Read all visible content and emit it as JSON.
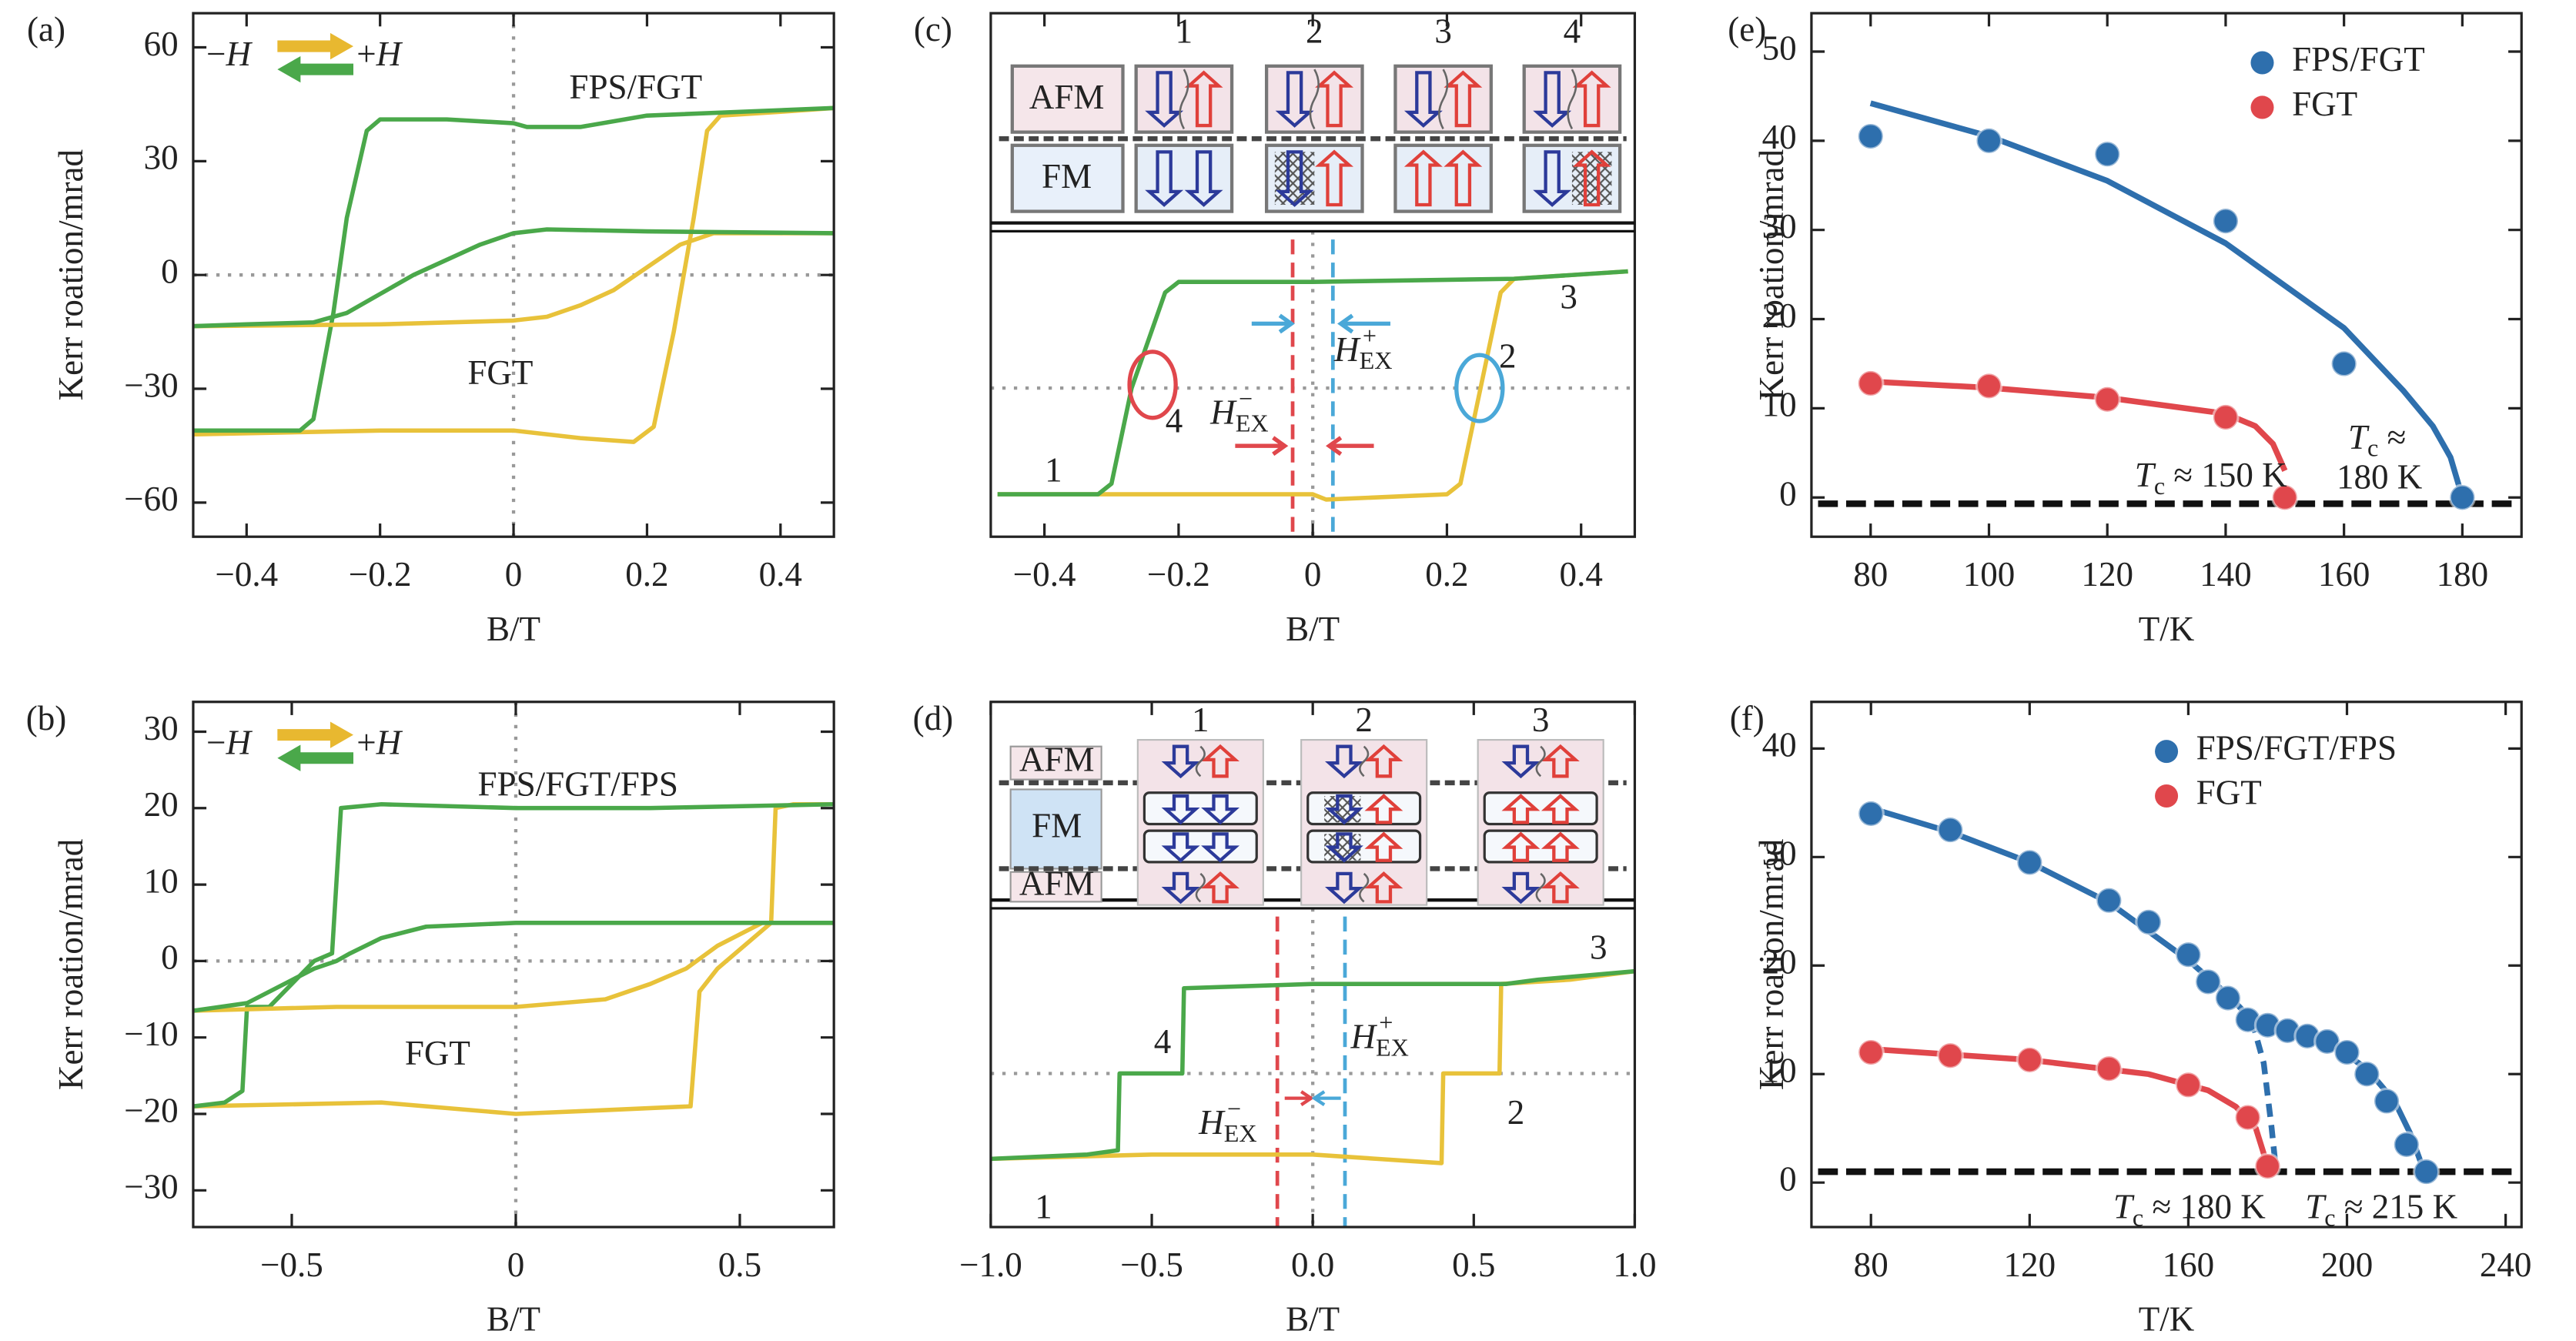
{
  "chart_data": [
    {
      "type": "line",
      "panel": "(a)",
      "xlabel": "B/T",
      "ylabel": "Kerr roation/mrad",
      "xlim": [
        -0.48,
        0.48
      ],
      "ylim": [
        -69,
        69
      ],
      "xticks": [
        {
          "value": -0.4,
          "label": "−0.4"
        },
        {
          "value": -0.2,
          "label": "−0.2"
        },
        0,
        0.2,
        0.4
      ],
      "yticks": [
        {
          "value": -60,
          "label": "−60"
        },
        {
          "value": -30,
          "label": "−30"
        },
        0,
        30,
        60
      ],
      "zero_lines": true,
      "series": [
        {
          "color": "#e8c23a",
          "x": [
            -0.48,
            -0.2,
            0,
            0.1,
            0.18,
            0.21,
            0.24,
            0.27,
            0.29,
            0.31,
            0.4,
            0.48
          ],
          "values": [
            -42,
            -41,
            -41,
            -43,
            -44,
            -40,
            -15,
            15,
            38,
            42,
            43,
            44
          ]
        },
        {
          "color": "#4aa84a",
          "x": [
            0.48,
            0.2,
            0.1,
            0.02,
            0,
            -0.1,
            -0.2,
            -0.22,
            -0.25,
            -0.27,
            -0.3,
            -0.32,
            -0.4,
            -0.48
          ],
          "values": [
            44,
            42,
            39,
            39,
            40,
            41,
            41,
            38,
            15,
            -10,
            -38,
            -41,
            -41,
            -41
          ]
        },
        {
          "color": "#e8c23a",
          "x": [
            -0.48,
            -0.2,
            0,
            0.05,
            0.1,
            0.15,
            0.2,
            0.25,
            0.3,
            0.4,
            0.48
          ],
          "values": [
            -13.5,
            -13,
            -12,
            -11,
            -8,
            -4,
            2,
            8,
            11,
            11,
            11
          ]
        },
        {
          "color": "#4aa84a",
          "x": [
            0.48,
            0.2,
            0.05,
            0,
            -0.05,
            -0.1,
            -0.15,
            -0.2,
            -0.25,
            -0.3,
            -0.4,
            -0.48
          ],
          "values": [
            11,
            11.5,
            12,
            11,
            8,
            4,
            0,
            -5,
            -10,
            -12.5,
            -13,
            -13.5
          ]
        }
      ],
      "annotations": [
        {
          "parts": [
            {
              "text": "−"
            },
            {
              "text": "H",
              "style": "italic"
            }
          ]
        },
        {
          "parts": [
            {
              "text": "+"
            },
            {
              "text": "H",
              "style": "italic"
            }
          ]
        },
        {
          "parts": [
            {
              "text": "FPS/FGT"
            }
          ]
        },
        {
          "parts": [
            {
              "text": "FGT"
            }
          ]
        }
      ]
    },
    {
      "type": "line",
      "panel": "(b)",
      "xlabel": "B/T",
      "ylabel": "Kerr roation/mrad",
      "xlim": [
        -0.72,
        0.71
      ],
      "ylim": [
        -34.8,
        33.9
      ],
      "xticks": [
        {
          "value": -0.5,
          "label": "−0.5"
        },
        0,
        0.5
      ],
      "yticks": [
        {
          "value": -30,
          "label": "−30"
        },
        {
          "value": -20,
          "label": "−20"
        },
        {
          "value": -10,
          "label": "−10"
        },
        0,
        10,
        20,
        30
      ],
      "zero_lines": true,
      "series": [
        {
          "color": "#e8c23a",
          "x": [
            -0.72,
            -0.3,
            0,
            0.2,
            0.39,
            0.41,
            0.45,
            0.55,
            0.57,
            0.58,
            0.62,
            0.71
          ],
          "values": [
            -19,
            -18.5,
            -20,
            -19.5,
            -19,
            -4,
            -1,
            4,
            5,
            20,
            20.5,
            20.5
          ]
        },
        {
          "color": "#4aa84a",
          "x": [
            0.71,
            0.3,
            0,
            -0.3,
            -0.39,
            -0.41,
            -0.45,
            -0.55,
            -0.59,
            -0.6,
            -0.61,
            -0.65,
            -0.72
          ],
          "values": [
            20.5,
            20,
            20,
            20.5,
            20,
            1,
            0,
            -6,
            -6,
            -6,
            -17,
            -18.5,
            -19
          ]
        },
        {
          "color": "#e8c23a",
          "x": [
            -0.72,
            -0.4,
            0,
            0.2,
            0.3,
            0.38,
            0.45,
            0.55,
            0.71
          ],
          "values": [
            -6.5,
            -6,
            -6,
            -5,
            -3,
            -1,
            2,
            5,
            5
          ]
        },
        {
          "color": "#4aa84a",
          "x": [
            0.71,
            0.3,
            0,
            -0.2,
            -0.3,
            -0.37,
            -0.4,
            -0.45,
            -0.6,
            -0.72
          ],
          "values": [
            5,
            5,
            5,
            4.5,
            3,
            1,
            0,
            -1,
            -5.5,
            -6.5
          ]
        }
      ],
      "annotations": [
        {
          "parts": [
            {
              "text": "−"
            },
            {
              "text": "H",
              "style": "italic"
            }
          ]
        },
        {
          "parts": [
            {
              "text": "+"
            },
            {
              "text": "H",
              "style": "italic"
            }
          ]
        },
        {
          "parts": [
            {
              "text": "FPS/FGT/FPS"
            }
          ]
        },
        {
          "parts": [
            {
              "text": "FGT"
            }
          ]
        }
      ]
    },
    {
      "type": "line",
      "panel": "(c)",
      "xlabel": "B/T",
      "xlim": [
        -0.48,
        0.48
      ],
      "ylim": [
        -1.4,
        1.4
      ],
      "xticks": [
        {
          "value": -0.4,
          "label": "−0.4"
        },
        {
          "value": -0.2,
          "label": "−0.2"
        },
        0,
        0.2,
        0.4
      ],
      "zero_lines": true,
      "exchange_bias": [
        {
          "x": -0.03,
          "color": "#e0474c"
        },
        {
          "x": 0.03,
          "color": "#4aa8d8"
        }
      ],
      "inset": {
        "layers": [
          "AFM",
          "FM"
        ],
        "states": [
          "1",
          "2",
          "3",
          "4"
        ]
      },
      "series": [
        {
          "color": "#e8c23a",
          "x": [
            -0.47,
            0,
            0.02,
            0.2,
            0.22,
            0.25,
            0.28,
            0.3,
            0.47
          ],
          "values": [
            -1.0,
            -1.0,
            -1.05,
            -1.0,
            -0.9,
            0,
            0.9,
            1.03,
            1.1
          ]
        },
        {
          "color": "#4aa84a",
          "x": [
            0.47,
            0.3,
            0,
            -0.2,
            -0.22,
            -0.27,
            -0.3,
            -0.32,
            -0.47
          ],
          "values": [
            1.1,
            1.03,
            1.0,
            1.0,
            0.9,
            0,
            -0.9,
            -1.0,
            -1.0
          ]
        }
      ],
      "annotations": [
        {
          "parts": [
            {
              "text": "1"
            }
          ]
        },
        {
          "parts": [
            {
              "text": "2"
            }
          ]
        },
        {
          "parts": [
            {
              "text": "3"
            }
          ]
        },
        {
          "parts": [
            {
              "text": "4"
            }
          ]
        },
        {
          "color": "#4aa8d8",
          "parts": [
            {
              "text": "H",
              "style": "italic"
            },
            {
              "text": "EX",
              "style": "sub"
            },
            {
              "text": "+",
              "style": "sup"
            }
          ]
        },
        {
          "color": "#e0474c",
          "parts": [
            {
              "text": "H",
              "style": "italic"
            },
            {
              "text": "EX",
              "style": "sub"
            },
            {
              "text": "−",
              "style": "sup"
            }
          ]
        }
      ]
    },
    {
      "type": "line",
      "panel": "(d)",
      "xlabel": "B/T",
      "xlim": [
        -1,
        1
      ],
      "ylim": [
        -1.8,
        1.84
      ],
      "xticks": [
        {
          "value": -1,
          "label": "−1.0"
        },
        {
          "value": -0.5,
          "label": "−0.5"
        },
        {
          "value": 0,
          "label": "0.0"
        },
        0.5,
        {
          "value": 1,
          "label": "1.0"
        }
      ],
      "zero_lines": true,
      "exchange_bias": [
        {
          "x": -0.11,
          "color": "#e0474c"
        },
        {
          "x": 0.1,
          "color": "#4aa8d8"
        }
      ],
      "inset": {
        "layers": [
          "AFM",
          "FM",
          "AFM"
        ],
        "states": [
          "1",
          "2",
          "3"
        ]
      },
      "series": [
        {
          "color": "#e8c23a",
          "x": [
            -1,
            -0.5,
            0,
            0.2,
            0.4,
            0.405,
            0.58,
            0.585,
            0.8,
            1
          ],
          "values": [
            -1.0,
            -0.95,
            -0.95,
            -1.0,
            -1.05,
            0,
            0,
            1.05,
            1.1,
            1.2
          ]
        },
        {
          "color": "#4aa84a",
          "x": [
            1,
            0.7,
            0.6,
            0,
            -0.4,
            -0.405,
            -0.6,
            -0.605,
            -0.7,
            -1
          ],
          "values": [
            1.2,
            1.1,
            1.05,
            1.05,
            1.0,
            0,
            0,
            -0.9,
            -0.95,
            -1.0
          ]
        }
      ],
      "annotations": [
        {
          "parts": [
            {
              "text": "1"
            }
          ]
        },
        {
          "parts": [
            {
              "text": "2"
            }
          ]
        },
        {
          "parts": [
            {
              "text": "3"
            }
          ]
        },
        {
          "parts": [
            {
              "text": "4"
            }
          ]
        },
        {
          "color": "#4aa8d8",
          "parts": [
            {
              "text": "H",
              "style": "italic"
            },
            {
              "text": "EX",
              "style": "sub"
            },
            {
              "text": "+",
              "style": "sup"
            }
          ]
        },
        {
          "color": "#e0474c",
          "parts": [
            {
              "text": "H",
              "style": "italic"
            },
            {
              "text": "EX",
              "style": "sub"
            },
            {
              "text": "−",
              "style": "sup"
            }
          ]
        }
      ]
    },
    {
      "type": "scatter",
      "panel": "(e)",
      "xlabel": "T/K",
      "ylabel": "Kerr roation/mrad",
      "xlim": [
        70,
        190
      ],
      "ylim": [
        -4.4,
        54.3
      ],
      "xticks": [
        80,
        100,
        120,
        140,
        160,
        180
      ],
      "yticks": [
        0,
        10,
        20,
        30,
        40,
        50
      ],
      "reference_y": -0.7,
      "series": [
        {
          "color": "#2e6fad",
          "mode": "line",
          "x": [
            80,
            100,
            120,
            140,
            160,
            170,
            175,
            178,
            180
          ],
          "values": [
            44.2,
            40.5,
            35.5,
            28.5,
            19,
            12,
            8,
            4.5,
            0
          ]
        },
        {
          "color": "#e0474c",
          "mode": "line",
          "x": [
            80,
            100,
            120,
            140,
            145,
            148,
            150
          ],
          "values": [
            13,
            12.3,
            11.2,
            9.4,
            8,
            6,
            3
          ]
        },
        {
          "name": "FPS/FGT",
          "color": "#2e6fad",
          "mode": "markers",
          "x": [
            80,
            100,
            120,
            140,
            160,
            180
          ],
          "values": [
            40.5,
            40,
            38.5,
            31,
            15,
            0
          ]
        },
        {
          "name": "FGT",
          "color": "#e0474c",
          "mode": "markers",
          "x": [
            80,
            100,
            120,
            140,
            150
          ],
          "values": [
            12.8,
            12.5,
            11,
            9,
            0
          ]
        }
      ],
      "annotations": [
        {
          "color": "#e0474c",
          "parts": [
            {
              "text": "T",
              "style": "italic"
            },
            {
              "text": "c",
              "style": "sub"
            },
            {
              "text": " ≈ 150 K"
            }
          ]
        },
        {
          "color": "#2e6fad",
          "parts": [
            {
              "text": "T",
              "style": "italic"
            },
            {
              "text": "c",
              "style": "sub"
            },
            {
              "text": " ≈"
            }
          ]
        },
        {
          "color": "#2e6fad",
          "parts": [
            {
              "text": "180 K"
            }
          ]
        }
      ]
    },
    {
      "type": "scatter",
      "panel": "(f)",
      "xlabel": "T/K",
      "ylabel": "Kerr roation/mrad",
      "xlim": [
        65,
        244
      ],
      "ylim": [
        -4.1,
        44.3
      ],
      "xticks": [
        80,
        120,
        160,
        200,
        240
      ],
      "yticks": [
        0,
        10,
        20,
        30,
        40
      ],
      "reference_y": 1,
      "series": [
        {
          "color": "#2e6fad",
          "mode": "line",
          "x": [
            80,
            100,
            120,
            140,
            160,
            170,
            176
          ],
          "values": [
            34.5,
            32.3,
            29.5,
            25.8,
            20.5,
            17.3,
            15
          ]
        },
        {
          "color": "#2e6fad",
          "mode": "dashed",
          "x": [
            176,
            179,
            181,
            182
          ],
          "values": [
            15,
            11,
            5,
            1.5
          ]
        },
        {
          "color": "#2e6fad",
          "mode": "line",
          "x": [
            174,
            185,
            195,
            205,
            212,
            216,
            219,
            220
          ],
          "values": [
            15,
            14.2,
            13,
            10.5,
            7.5,
            4.5,
            1.5,
            0
          ]
        },
        {
          "color": "#e0474c",
          "mode": "line",
          "x": [
            80,
            120,
            150,
            165,
            172,
            177,
            180
          ],
          "values": [
            12.3,
            11.3,
            10,
            8.5,
            7,
            5,
            1.5
          ]
        },
        {
          "name": "FPS/FGT/FPS",
          "color": "#2e6fad",
          "mode": "markers",
          "x": [
            80,
            100,
            120,
            140,
            150,
            160,
            165,
            170,
            175,
            180,
            185,
            190,
            195,
            200,
            205,
            210,
            215,
            220
          ],
          "values": [
            34,
            32.5,
            29.5,
            26,
            24,
            21,
            18.5,
            17,
            15,
            14.5,
            14,
            13.5,
            13,
            12,
            10,
            7.5,
            3.5,
            1
          ]
        },
        {
          "name": "FGT",
          "color": "#e0474c",
          "mode": "markers",
          "x": [
            80,
            100,
            120,
            140,
            160,
            175,
            180
          ],
          "values": [
            12,
            11.7,
            11.3,
            10.5,
            9,
            6,
            1.5
          ]
        }
      ],
      "annotations": [
        {
          "color": "#e0474c",
          "parts": [
            {
              "text": "T",
              "style": "italic"
            },
            {
              "text": "c",
              "style": "sub"
            },
            {
              "text": " ≈ 180 K"
            }
          ]
        },
        {
          "color": "#2e6fad",
          "parts": [
            {
              "text": "T",
              "style": "italic"
            },
            {
              "text": "c",
              "style": "sub"
            },
            {
              "text": " ≈ 215 K"
            }
          ]
        }
      ]
    }
  ]
}
